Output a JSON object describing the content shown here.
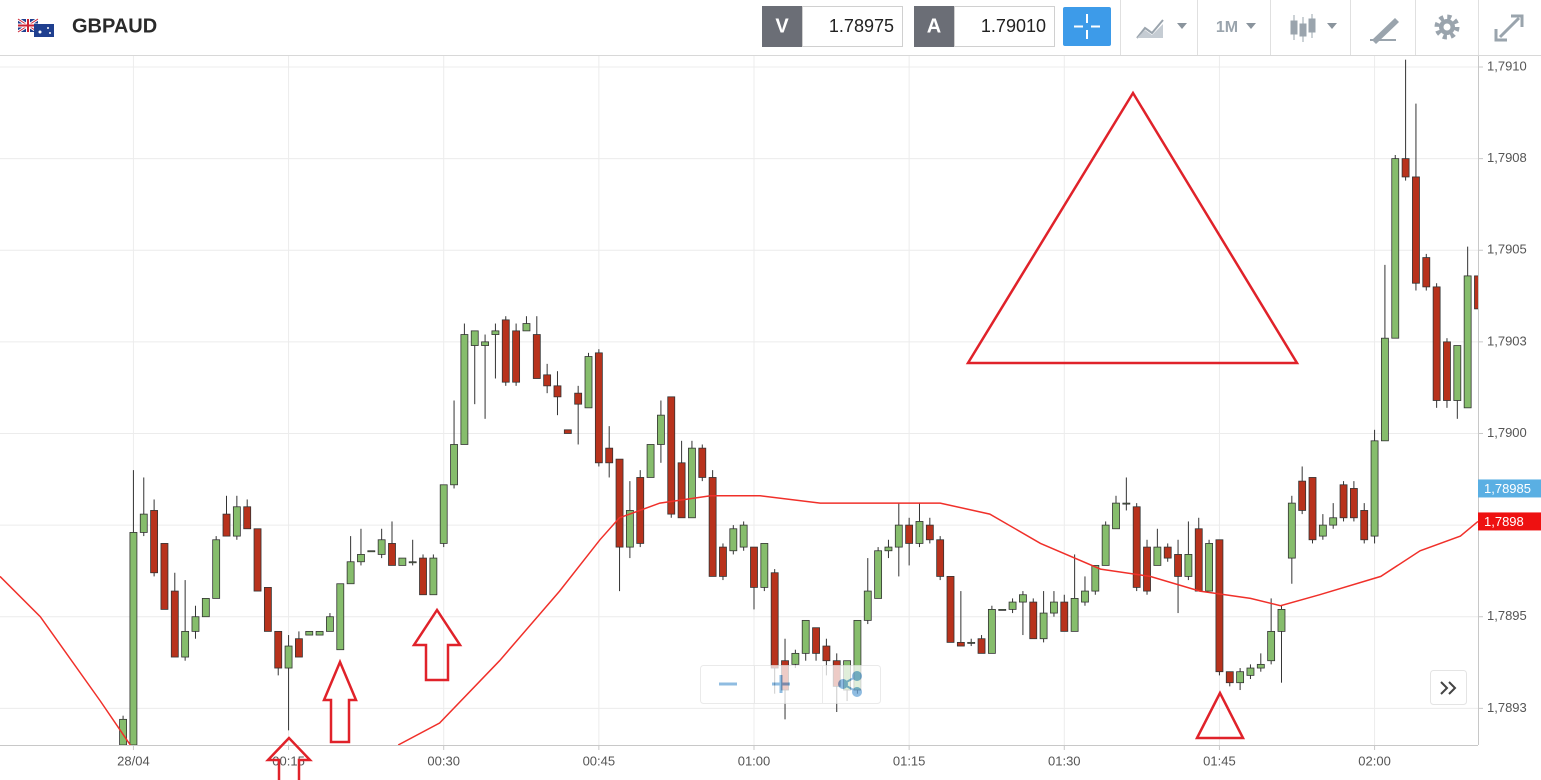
{
  "toolbar": {
    "symbol": "GBPAUD",
    "bid_label": "V",
    "bid": "1.78975",
    "ask_label": "A",
    "ask": "1.79010",
    "timeframe": "1M"
  },
  "chart_data": {
    "type": "candlestick",
    "x": [
      -1,
      0,
      1,
      2,
      3,
      4,
      5,
      6,
      7,
      8,
      9,
      10,
      11,
      12,
      13,
      14,
      15,
      16,
      17,
      18,
      19,
      20,
      21,
      22,
      23,
      24,
      25,
      26,
      27,
      28,
      29,
      30,
      31,
      32,
      33,
      34,
      35,
      36,
      37,
      38,
      39,
      40,
      41,
      42,
      43,
      44,
      45,
      46,
      47,
      48,
      49,
      50,
      51,
      52,
      53,
      54,
      55,
      56,
      57,
      58,
      59,
      60,
      61,
      62,
      63,
      64,
      65,
      66,
      67,
      68,
      69,
      70,
      71,
      72,
      73,
      74,
      75,
      76,
      77,
      78,
      79,
      80,
      81,
      82,
      83,
      84,
      85,
      86,
      87,
      88,
      89,
      90,
      91,
      92,
      93,
      94,
      95,
      96,
      97,
      98,
      99,
      100,
      101,
      102,
      103,
      104,
      105,
      106,
      107,
      108,
      109,
      110,
      111,
      112,
      113,
      114,
      115,
      116,
      117,
      118,
      119,
      120,
      121,
      122,
      123,
      124,
      125,
      126,
      127,
      128,
      129,
      130
    ],
    "open": [
      1.78915,
      1.78915,
      1.78973,
      1.78979,
      1.7897,
      1.78957,
      1.78939,
      1.78946,
      1.7895,
      1.78955,
      1.78978,
      1.78972,
      1.7898,
      1.78974,
      1.78958,
      1.78946,
      1.78936,
      1.78944,
      1.78945,
      1.78945,
      1.78946,
      1.78941,
      1.78959,
      1.78965,
      1.78968,
      1.78967,
      1.7897,
      1.78964,
      1.78965,
      1.78966,
      1.78956,
      1.7897,
      1.78986,
      1.78997,
      1.79024,
      1.79024,
      1.79027,
      1.79031,
      1.79028,
      1.79028,
      1.79027,
      1.79016,
      1.79013,
      1.79001,
      1.79011,
      1.79007,
      1.79022,
      1.78996,
      1.78993,
      1.78969,
      1.78988,
      1.78988,
      1.78997,
      1.7901,
      1.78992,
      1.78977,
      1.78996,
      1.78988,
      1.78969,
      1.78968,
      1.78969,
      1.78969,
      1.78958,
      1.78962,
      1.78938,
      1.78937,
      1.7894,
      1.78947,
      1.78942,
      1.78938,
      1.7893,
      1.7893,
      1.78949,
      1.78955,
      1.78968,
      1.78969,
      1.78975,
      1.7897,
      1.78975,
      1.78971,
      1.78961,
      1.78943,
      1.78943,
      1.78944,
      1.7894,
      1.78952,
      1.78952,
      1.78954,
      1.78954,
      1.78944,
      1.78951,
      1.78954,
      1.78946,
      1.78954,
      1.78957,
      1.78964,
      1.78974,
      1.78981,
      1.7898,
      1.78969,
      1.78964,
      1.78969,
      1.78967,
      1.78961,
      1.78974,
      1.78957,
      1.78971,
      1.78935,
      1.78932,
      1.78934,
      1.78936,
      1.78938,
      1.78946,
      1.78966,
      1.78987,
      1.78988,
      1.78972,
      1.78975,
      1.78986,
      1.78985,
      1.78979,
      1.78972,
      1.78998,
      1.79026,
      1.79075,
      1.7907,
      1.79048,
      1.7904,
      1.79025,
      1.79009,
      1.79007,
      1.79043
    ],
    "high": [
      1.78923,
      1.7899,
      1.78988,
      1.78982,
      1.7897,
      1.78962,
      1.7896,
      1.78953,
      1.78955,
      1.78972,
      1.78983,
      1.78983,
      1.78982,
      1.78974,
      1.78958,
      1.78946,
      1.78945,
      1.78946,
      1.78946,
      1.78946,
      1.78951,
      1.78959,
      1.78972,
      1.78974,
      1.78968,
      1.78974,
      1.78976,
      1.78966,
      1.78971,
      1.78967,
      1.78967,
      1.78986,
      1.79009,
      1.7903,
      1.79028,
      1.79027,
      1.7903,
      1.79032,
      1.7903,
      1.79032,
      1.79032,
      1.79019,
      1.79017,
      1.79001,
      1.79013,
      1.79022,
      1.79023,
      1.79002,
      1.78993,
      1.78987,
      1.7899,
      1.78997,
      1.79009,
      1.7901,
      1.78998,
      1.78998,
      1.78997,
      1.7899,
      1.7897,
      1.78975,
      1.78976,
      1.78969,
      1.7897,
      1.78963,
      1.78944,
      1.78941,
      1.78949,
      1.78947,
      1.78944,
      1.7894,
      1.78938,
      1.78949,
      1.78966,
      1.78969,
      1.78971,
      1.78981,
      1.78977,
      1.78981,
      1.78977,
      1.78972,
      1.78961,
      1.78957,
      1.78944,
      1.78945,
      1.78953,
      1.78952,
      1.78955,
      1.78957,
      1.78955,
      1.78957,
      1.78957,
      1.78956,
      1.78967,
      1.78961,
      1.78964,
      1.78976,
      1.78983,
      1.78988,
      1.78981,
      1.78971,
      1.78974,
      1.7897,
      1.78971,
      1.78976,
      1.78977,
      1.78971,
      1.78971,
      1.78935,
      1.78936,
      1.78937,
      1.7894,
      1.78955,
      1.78953,
      1.78983,
      1.78991,
      1.78988,
      1.78978,
      1.78981,
      1.78987,
      1.78987,
      1.78981,
      1.79001,
      1.79046,
      1.79076,
      1.79102,
      1.7909,
      1.79049,
      1.79041,
      1.79026,
      1.79024,
      1.79051,
      1.79043
    ],
    "low": [
      1.78915,
      1.78915,
      1.78972,
      1.78961,
      1.78952,
      1.78939,
      1.78938,
      1.78944,
      1.7895,
      1.78955,
      1.78972,
      1.78971,
      1.78974,
      1.78957,
      1.78946,
      1.78934,
      1.78919,
      1.78939,
      1.78945,
      1.78945,
      1.78946,
      1.78941,
      1.78959,
      1.78964,
      1.78968,
      1.78966,
      1.78964,
      1.78964,
      1.78964,
      1.78956,
      1.78956,
      1.78969,
      1.78985,
      1.78997,
      1.79008,
      1.79004,
      1.79015,
      1.79013,
      1.79013,
      1.79028,
      1.79015,
      1.79011,
      1.79005,
      1.79,
      1.78997,
      1.79007,
      1.78991,
      1.78988,
      1.78957,
      1.78966,
      1.78969,
      1.78988,
      1.78992,
      1.78977,
      1.78977,
      1.78977,
      1.78987,
      1.78961,
      1.7896,
      1.78967,
      1.78968,
      1.78952,
      1.78957,
      1.78929,
      1.78922,
      1.78936,
      1.78938,
      1.78938,
      1.78934,
      1.78924,
      1.78927,
      1.78929,
      1.78948,
      1.78955,
      1.78966,
      1.78961,
      1.78964,
      1.78969,
      1.7897,
      1.7896,
      1.78943,
      1.78942,
      1.78942,
      1.7894,
      1.7894,
      1.78952,
      1.78951,
      1.78945,
      1.78944,
      1.78943,
      1.7895,
      1.78946,
      1.78946,
      1.78953,
      1.78956,
      1.78964,
      1.78974,
      1.78979,
      1.78957,
      1.78956,
      1.78964,
      1.78965,
      1.78951,
      1.7896,
      1.78957,
      1.78957,
      1.78934,
      1.78931,
      1.7893,
      1.78933,
      1.78935,
      1.78937,
      1.78932,
      1.78959,
      1.78978,
      1.7897,
      1.78971,
      1.78974,
      1.78976,
      1.78976,
      1.7897,
      1.7897,
      1.78998,
      1.79026,
      1.79069,
      1.79039,
      1.79039,
      1.79007,
      1.79007,
      1.79004,
      1.79007,
      1.79034
    ],
    "close": [
      1.78922,
      1.78973,
      1.78978,
      1.78962,
      1.78952,
      1.78939,
      1.78946,
      1.7895,
      1.78955,
      1.78971,
      1.78972,
      1.7898,
      1.78974,
      1.78957,
      1.78946,
      1.78936,
      1.78942,
      1.78939,
      1.78946,
      1.78946,
      1.7895,
      1.78959,
      1.78965,
      1.78967,
      1.78968,
      1.78971,
      1.78964,
      1.78966,
      1.78965,
      1.78956,
      1.78966,
      1.78986,
      1.78997,
      1.79027,
      1.79028,
      1.79025,
      1.79028,
      1.79014,
      1.79014,
      1.7903,
      1.79015,
      1.79013,
      1.7901,
      1.79,
      1.79008,
      1.79021,
      1.78992,
      1.78992,
      1.78969,
      1.78979,
      1.7897,
      1.78997,
      1.79005,
      1.78978,
      1.78977,
      1.78996,
      1.78988,
      1.78961,
      1.78961,
      1.78974,
      1.78975,
      1.78958,
      1.7897,
      1.78936,
      1.7893,
      1.7894,
      1.78949,
      1.7894,
      1.78938,
      1.78931,
      1.78938,
      1.78949,
      1.78957,
      1.78968,
      1.78969,
      1.78975,
      1.7897,
      1.78976,
      1.78971,
      1.78961,
      1.78943,
      1.78942,
      1.78943,
      1.7894,
      1.78952,
      1.78952,
      1.78954,
      1.78956,
      1.78944,
      1.78951,
      1.78954,
      1.78946,
      1.78955,
      1.78957,
      1.78964,
      1.78975,
      1.78981,
      1.78981,
      1.78958,
      1.78957,
      1.78969,
      1.78966,
      1.78961,
      1.78967,
      1.78957,
      1.7897,
      1.78935,
      1.78932,
      1.78935,
      1.78936,
      1.78937,
      1.78946,
      1.78952,
      1.78981,
      1.78979,
      1.78971,
      1.78975,
      1.78977,
      1.78977,
      1.78977,
      1.78971,
      1.78998,
      1.79026,
      1.79075,
      1.7907,
      1.79041,
      1.7904,
      1.79009,
      1.79009,
      1.79024,
      1.79043,
      1.79034
    ],
    "up_color": "#86bd6c",
    "down_color": "#b8321c",
    "overlay": {
      "color": "#f0302a",
      "x": [
        -12.9,
        -9.0,
        -3.2,
        -0.3,
        13,
        25.6,
        29.6,
        35.4,
        41.2,
        45.1,
        47.0,
        50.9,
        55.8,
        60.6,
        66.4,
        72.2,
        78.0,
        82.8,
        87.7,
        93.5,
        98.3,
        103.1,
        108.0,
        110.9,
        114.7,
        120.6,
        124.4,
        128.3,
        130.0
      ],
      "values": [
        1.78961,
        1.7895,
        1.78927,
        1.78915,
        null,
        1.78915,
        1.78921,
        1.78938,
        1.78957,
        1.78971,
        1.78977,
        1.78981,
        1.78983,
        1.78983,
        1.78981,
        1.78981,
        1.78981,
        1.78978,
        1.7897,
        1.78963,
        1.78961,
        1.78957,
        1.78955,
        1.78953,
        1.78956,
        1.78961,
        1.78968,
        1.78972,
        1.78976
      ]
    },
    "markers": [
      {
        "value": 1.78985,
        "label": "1,78985",
        "color": "#5aafe3"
      },
      {
        "value": 1.78976,
        "label": "1,7898",
        "color": "#ee1111"
      }
    ],
    "xlim": [
      -12.9,
      130
    ],
    "ylim": [
      1.78915,
      1.79103
    ],
    "xticks": [
      {
        "value": 0,
        "label": "28/04"
      },
      {
        "value": 15,
        "label": "00:15"
      },
      {
        "value": 30,
        "label": "00:30"
      },
      {
        "value": 45,
        "label": "00:45"
      },
      {
        "value": 60,
        "label": "01:00"
      },
      {
        "value": 75,
        "label": "01:15"
      },
      {
        "value": 90,
        "label": "01:30"
      },
      {
        "value": 105,
        "label": "01:45"
      },
      {
        "value": 120,
        "label": "02:00"
      }
    ],
    "yticks": [
      {
        "value": 1.791,
        "label": "1,7910"
      },
      {
        "value": 1.79075,
        "label": "1,7908"
      },
      {
        "value": 1.7905,
        "label": "1,7905"
      },
      {
        "value": 1.79025,
        "label": "1,7903"
      },
      {
        "value": 1.79,
        "label": "1,7900"
      },
      {
        "value": 1.78975,
        "label": "1,7898"
      },
      {
        "value": 1.7895,
        "label": "1,7895"
      },
      {
        "value": 1.78925,
        "label": "1,7893"
      }
    ],
    "grid": true
  }
}
